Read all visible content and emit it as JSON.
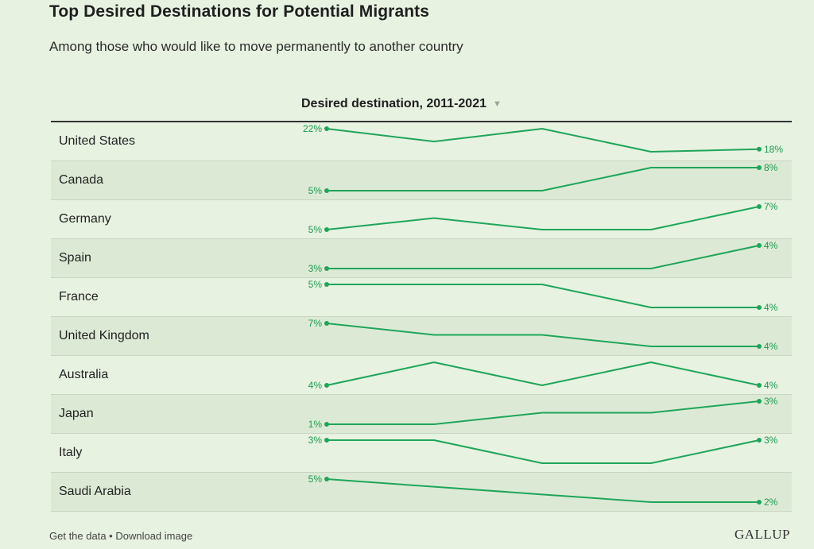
{
  "title": "Top Desired Destinations for Potential Migrants",
  "subtitle": "Among those who would like to move permanently to another country",
  "chart_header": "Desired destination, 2011-2021",
  "footer": {
    "get_data": "Get the data",
    "separator": " • ",
    "download": "Download image",
    "logo": "GALLUP"
  },
  "colors": {
    "line": "#1fa55a",
    "label": "#1c9a50"
  },
  "chart_data": {
    "type": "line",
    "title": "Top Desired Destinations for Potential Migrants",
    "subtitle": "Among those who would like to move permanently to another country",
    "xlabel": "Desired destination, 2011-2021",
    "unit": "%",
    "points_per_series": 5,
    "series": [
      {
        "name": "United States",
        "values": [
          22,
          19.5,
          22,
          17.5,
          18
        ],
        "start_label": "22%",
        "end_label": "18%"
      },
      {
        "name": "Canada",
        "values": [
          5,
          5,
          5,
          8,
          8
        ],
        "start_label": "5%",
        "end_label": "8%"
      },
      {
        "name": "Germany",
        "values": [
          5,
          6,
          5,
          5,
          7
        ],
        "start_label": "5%",
        "end_label": "7%"
      },
      {
        "name": "Spain",
        "values": [
          3,
          3,
          3,
          3,
          4
        ],
        "start_label": "3%",
        "end_label": "4%"
      },
      {
        "name": "France",
        "values": [
          5,
          5,
          5,
          4,
          4
        ],
        "start_label": "5%",
        "end_label": "4%"
      },
      {
        "name": "United Kingdom",
        "values": [
          7,
          5.5,
          5.5,
          4,
          4
        ],
        "start_label": "7%",
        "end_label": "4%"
      },
      {
        "name": "Australia",
        "values": [
          4,
          5,
          4,
          5,
          4
        ],
        "start_label": "4%",
        "end_label": "4%"
      },
      {
        "name": "Japan",
        "values": [
          1,
          1,
          2,
          2,
          3
        ],
        "start_label": "1%",
        "end_label": "3%"
      },
      {
        "name": "Italy",
        "values": [
          3,
          3,
          2,
          2,
          3
        ],
        "start_label": "3%",
        "end_label": "3%"
      },
      {
        "name": "Saudi Arabia",
        "values": [
          5,
          4,
          3,
          2,
          2
        ],
        "start_label": "5%",
        "end_label": "2%"
      }
    ]
  }
}
